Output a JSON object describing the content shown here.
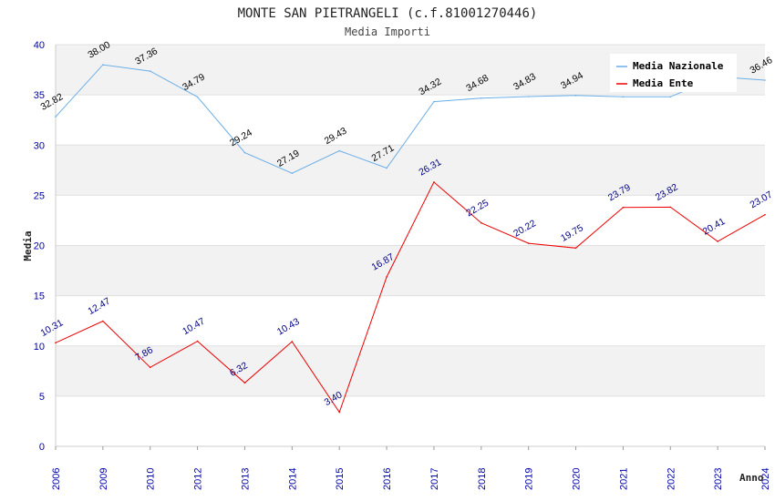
{
  "chart_data": {
    "type": "line",
    "title": "MONTE SAN PIETRANGELI (c.f.81001270446)",
    "subtitle": "Media Importi",
    "xlabel": "Anno",
    "ylabel": "Media",
    "ylim": [
      0,
      40
    ],
    "yticks": [
      0,
      5,
      10,
      15,
      20,
      25,
      30,
      35,
      40
    ],
    "categories": [
      "2006",
      "2009",
      "2010",
      "2012",
      "2013",
      "2014",
      "2015",
      "2016",
      "2017",
      "2018",
      "2019",
      "2020",
      "2021",
      "2022",
      "2023",
      "2024"
    ],
    "series": [
      {
        "name": "Media Nazionale",
        "color": "#6aaee8",
        "label_color": "#000000",
        "values": [
          32.82,
          38.0,
          37.36,
          34.79,
          29.24,
          27.19,
          29.43,
          27.71,
          34.32,
          34.68,
          34.83,
          34.94,
          34.8,
          34.8,
          36.8,
          36.46
        ],
        "labels": [
          "32.82",
          "38.00",
          "37.36",
          "34.79",
          "29.24",
          "27.19",
          "29.43",
          "27.71",
          "34.32",
          "34.68",
          "34.83",
          "34.94",
          "",
          "",
          "",
          "36.46"
        ]
      },
      {
        "name": "Media Ente",
        "color": "#ee0000",
        "label_color": "#000088",
        "values": [
          10.31,
          12.47,
          7.86,
          10.47,
          6.32,
          10.43,
          3.4,
          16.87,
          26.31,
          22.25,
          20.22,
          19.75,
          23.79,
          23.82,
          20.41,
          23.07
        ],
        "labels": [
          "10.31",
          "12.47",
          "7.86",
          "10.47",
          "6.32",
          "10.43",
          "3.40",
          "16.87",
          "26.31",
          "22.25",
          "20.22",
          "19.75",
          "23.79",
          "23.82",
          "20.41",
          "23.07"
        ]
      }
    ],
    "legend": {
      "placement": "top-right",
      "entries": [
        "Media Nazionale",
        "Media Ente"
      ]
    },
    "grid": true,
    "band_color": "#f2f2f2"
  }
}
